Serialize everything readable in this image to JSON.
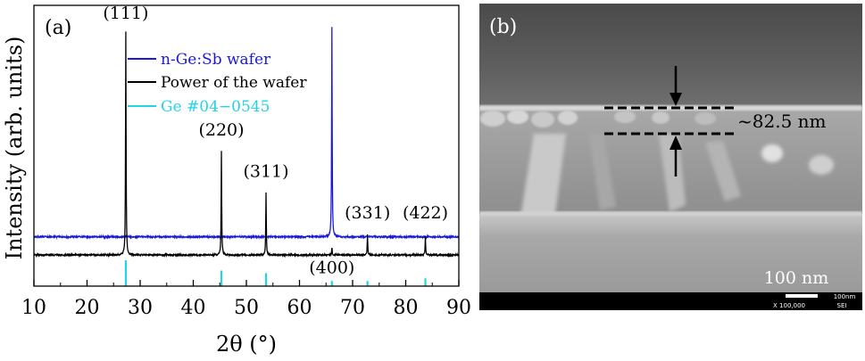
{
  "chart_data": [
    {
      "type": "line",
      "panel_label": "(a)",
      "xlabel": "2θ (°)",
      "ylabel": "Intensity (arb. units)",
      "xlim": [
        10,
        90
      ],
      "xticks": [
        10,
        20,
        30,
        40,
        50,
        60,
        70,
        80,
        90
      ],
      "grid": false,
      "legend_position": "top-center",
      "series": [
        {
          "name": "n-Ge:Sb wafer",
          "color": "#1a1adb",
          "baseline": 0.19,
          "peaks": [
            {
              "x": 66.1,
              "y": 1.0
            }
          ]
        },
        {
          "name": "Power of the wafer",
          "color": "#000000",
          "baseline": 0.12,
          "peaks": [
            {
              "x": 27.3,
              "y": 0.98
            },
            {
              "x": 45.3,
              "y": 0.52
            },
            {
              "x": 53.7,
              "y": 0.36
            },
            {
              "x": 66.1,
              "y": 0.15
            },
            {
              "x": 72.8,
              "y": 0.2
            },
            {
              "x": 83.7,
              "y": 0.19
            }
          ]
        },
        {
          "name": "Ge #04−0545",
          "color": "#22d4e8",
          "type": "stick",
          "baseline": 0.0,
          "peaks": [
            {
              "x": 27.3,
              "y": 0.1
            },
            {
              "x": 45.3,
              "y": 0.06
            },
            {
              "x": 53.7,
              "y": 0.05
            },
            {
              "x": 66.1,
              "y": 0.02
            },
            {
              "x": 72.8,
              "y": 0.02
            },
            {
              "x": 83.7,
              "y": 0.03
            }
          ]
        }
      ],
      "peak_labels": [
        {
          "text": "(111)",
          "x": 27.3,
          "y": 1.01
        },
        {
          "text": "(220)",
          "x": 45.3,
          "y": 0.56
        },
        {
          "text": "(311)",
          "x": 53.7,
          "y": 0.4
        },
        {
          "text": "(400)",
          "x": 66.1,
          "y": 0.03
        },
        {
          "text": "(331)",
          "x": 72.8,
          "y": 0.24
        },
        {
          "text": "(422)",
          "x": 83.7,
          "y": 0.24
        }
      ]
    }
  ],
  "sem_panel": {
    "panel_label": "(b)",
    "thickness_label": "~82.5 nm",
    "scale_bar_label": "100 nm",
    "footer_scale_text": "100nm",
    "footer_mag_text": "X 100,000",
    "footer_mode_text": "SEI"
  }
}
